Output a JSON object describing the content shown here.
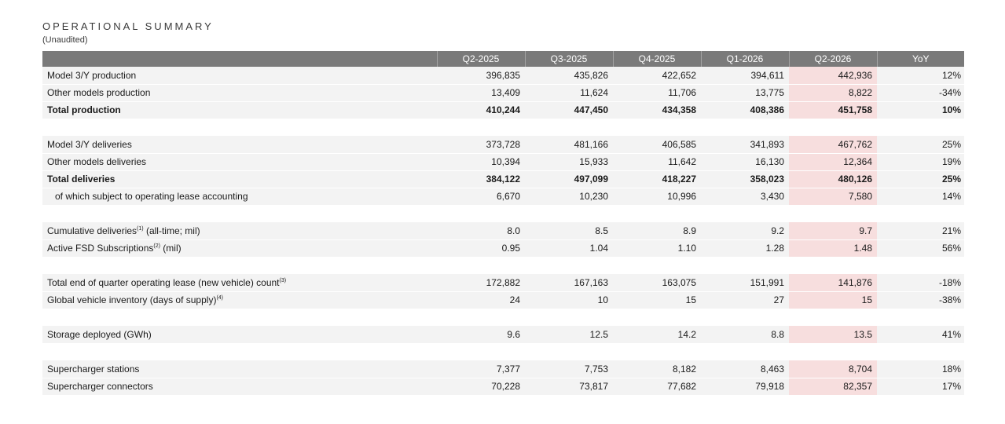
{
  "title": "OPERATIONAL SUMMARY",
  "subtitle": "(Unaudited)",
  "headers": [
    "",
    "Q2-2025",
    "Q3-2025",
    "Q4-2025",
    "Q1-2026",
    "Q2-2026",
    "YoY"
  ],
  "colors": {
    "header_bg": "#7a7a7a",
    "row_bg": "#f3f3f3",
    "highlight": "#f7dede"
  },
  "groups": [
    {
      "rows": [
        {
          "label": "Model 3/Y production",
          "sup": "",
          "suffix": "",
          "values": [
            "396,835",
            "435,826",
            "422,652",
            "394,611",
            "442,936"
          ],
          "yoy": "12%"
        },
        {
          "label": "Other models production",
          "sup": "",
          "suffix": "",
          "values": [
            "13,409",
            "11,624",
            "11,706",
            "13,775",
            "8,822"
          ],
          "yoy": "-34%"
        },
        {
          "label": "Total production",
          "sup": "",
          "suffix": "",
          "values": [
            "410,244",
            "447,450",
            "434,358",
            "408,386",
            "451,758"
          ],
          "yoy": "10%",
          "bold": true
        }
      ]
    },
    {
      "rows": [
        {
          "label": "Model 3/Y deliveries",
          "sup": "",
          "suffix": "",
          "values": [
            "373,728",
            "481,166",
            "406,585",
            "341,893",
            "467,762"
          ],
          "yoy": "25%"
        },
        {
          "label": "Other models deliveries",
          "sup": "",
          "suffix": "",
          "values": [
            "10,394",
            "15,933",
            "11,642",
            "16,130",
            "12,364"
          ],
          "yoy": "19%"
        },
        {
          "label": "Total deliveries",
          "sup": "",
          "suffix": "",
          "values": [
            "384,122",
            "497,099",
            "418,227",
            "358,023",
            "480,126"
          ],
          "yoy": "25%",
          "bold": true
        },
        {
          "label": "of which subject to operating lease accounting",
          "sup": "",
          "suffix": "",
          "values": [
            "6,670",
            "10,230",
            "10,996",
            "3,430",
            "7,580"
          ],
          "yoy": "14%",
          "indent": true
        }
      ]
    },
    {
      "rows": [
        {
          "label": "Cumulative deliveries",
          "sup": "(1)",
          "suffix": " (all-time; mil)",
          "values": [
            "8.0",
            "8.5",
            "8.9",
            "9.2",
            "9.7"
          ],
          "yoy": "21%"
        },
        {
          "label": "Active FSD Subscriptions",
          "sup": "(2)",
          "suffix": " (mil)",
          "values": [
            "0.95",
            "1.04",
            "1.10",
            "1.28",
            "1.48"
          ],
          "yoy": "56%"
        }
      ]
    },
    {
      "rows": [
        {
          "label": "Total end of quarter operating lease (new vehicle) count",
          "sup": "(3)",
          "suffix": "",
          "values": [
            "172,882",
            "167,163",
            "163,075",
            "151,991",
            "141,876"
          ],
          "yoy": "-18%"
        },
        {
          "label": "Global vehicle inventory (days of supply)",
          "sup": "(4)",
          "suffix": "",
          "values": [
            "24",
            "10",
            "15",
            "27",
            "15"
          ],
          "yoy": "-38%"
        }
      ]
    },
    {
      "rows": [
        {
          "label": "Storage deployed (GWh)",
          "sup": "",
          "suffix": "",
          "values": [
            "9.6",
            "12.5",
            "14.2",
            "8.8",
            "13.5"
          ],
          "yoy": "41%"
        }
      ]
    },
    {
      "rows": [
        {
          "label": "Supercharger stations",
          "sup": "",
          "suffix": "",
          "values": [
            "7,377",
            "7,753",
            "8,182",
            "8,463",
            "8,704"
          ],
          "yoy": "18%"
        },
        {
          "label": "Supercharger connectors",
          "sup": "",
          "suffix": "",
          "values": [
            "70,228",
            "73,817",
            "77,682",
            "79,918",
            "82,357"
          ],
          "yoy": "17%"
        }
      ]
    }
  ]
}
